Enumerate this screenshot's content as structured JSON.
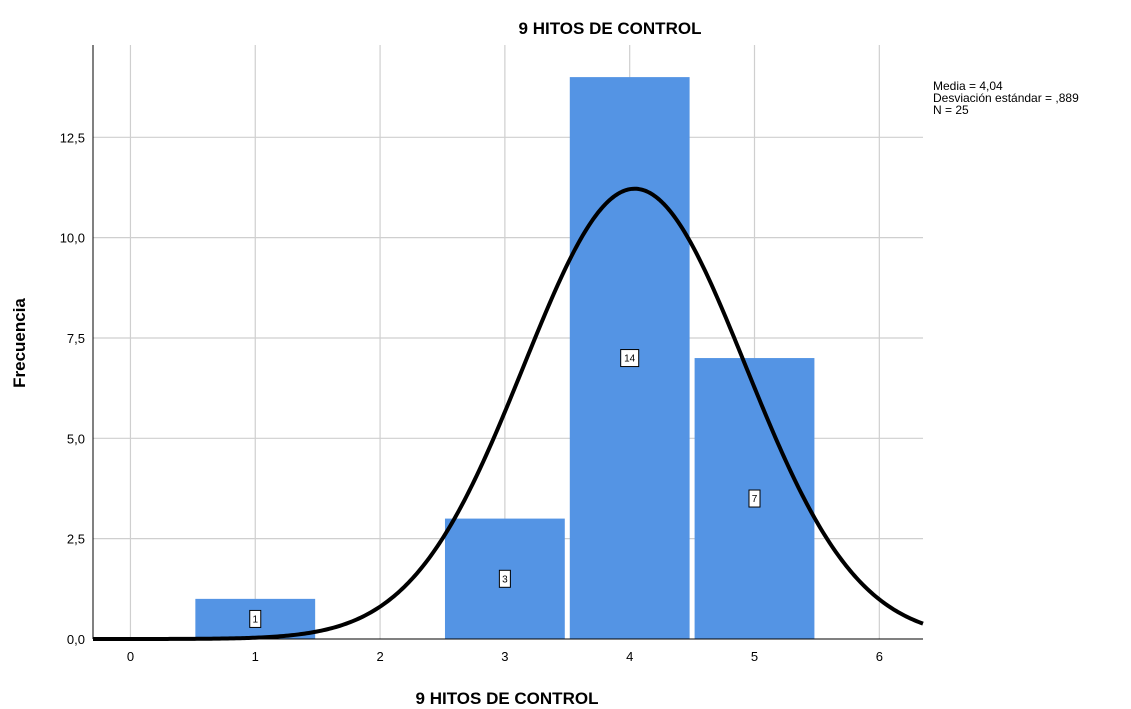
{
  "chart_data": {
    "type": "bar",
    "title": "9 HITOS DE CONTROL",
    "xlabel": "9 HITOS DE CONTROL",
    "ylabel": "Frecuencia",
    "x_ticks": [
      "0",
      "1",
      "2",
      "3",
      "4",
      "5",
      "6"
    ],
    "y_ticks": [
      "0,0",
      "2,5",
      "5,0",
      "7,5",
      "10,0",
      "12,5"
    ],
    "xlim": [
      -0.3,
      6.35
    ],
    "ylim": [
      0,
      14.8
    ],
    "bins": [
      {
        "x": 1,
        "value": 1,
        "label": "1"
      },
      {
        "x": 3,
        "value": 3,
        "label": "3"
      },
      {
        "x": 4,
        "value": 14,
        "label": "14"
      },
      {
        "x": 5,
        "value": 7,
        "label": "7"
      }
    ],
    "bar_color": "#5494e4",
    "curve_color": "#000000",
    "normal_curve": {
      "mean": 4.04,
      "sd": 0.889,
      "n": 25,
      "bin_width": 1
    },
    "stats": [
      "Media = 4,04",
      "Desviación estándar = ,889",
      "N = 25"
    ],
    "grid": true
  }
}
